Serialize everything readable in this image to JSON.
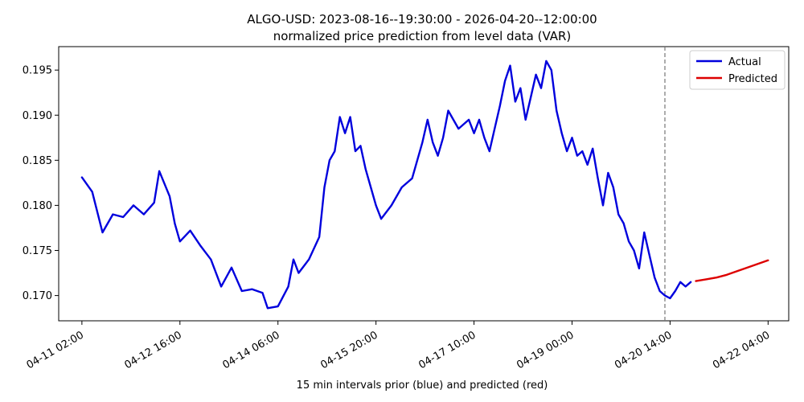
{
  "chart_data": {
    "type": "line",
    "title": "ALGO-USD: 2023-08-16--19:30:00 - 2026-04-20--12:00:00",
    "subtitle": "normalized price prediction from level data (VAR)",
    "xlabel": "15 min intervals prior (blue) and predicted (red)",
    "ylabel": "",
    "x_tick_labels": [
      "04-11 02:00",
      "04-12 16:00",
      "04-14 06:00",
      "04-15 20:00",
      "04-17 10:00",
      "04-19 00:00",
      "04-20 14:00",
      "04-22 04:00"
    ],
    "x_range": [
      "2026-04-10 17:00",
      "2026-04-22 12:00"
    ],
    "y_tick_labels": [
      "0.170",
      "0.175",
      "0.180",
      "0.185",
      "0.190",
      "0.195"
    ],
    "y_ticks": [
      0.17,
      0.175,
      0.18,
      0.185,
      0.19,
      0.195
    ],
    "ylim": [
      0.1672,
      0.1976
    ],
    "grid": false,
    "legend_position": "top-right",
    "split_marker": "2026-04-20 12:00",
    "series": [
      {
        "name": "Actual",
        "color": "#0000dd",
        "points": [
          [
            "2026-04-11 02:00",
            0.1831
          ],
          [
            "2026-04-11 06:00",
            0.1815
          ],
          [
            "2026-04-11 10:00",
            0.177
          ],
          [
            "2026-04-11 14:00",
            0.179
          ],
          [
            "2026-04-11 18:00",
            0.1787
          ],
          [
            "2026-04-11 22:00",
            0.18
          ],
          [
            "2026-04-12 02:00",
            0.179
          ],
          [
            "2026-04-12 06:00",
            0.1803
          ],
          [
            "2026-04-12 08:00",
            0.1838
          ],
          [
            "2026-04-12 12:00",
            0.181
          ],
          [
            "2026-04-12 14:00",
            0.178
          ],
          [
            "2026-04-12 16:00",
            0.176
          ],
          [
            "2026-04-12 20:00",
            0.1772
          ],
          [
            "2026-04-13 00:00",
            0.1755
          ],
          [
            "2026-04-13 04:00",
            0.174
          ],
          [
            "2026-04-13 08:00",
            0.171
          ],
          [
            "2026-04-13 12:00",
            0.1731
          ],
          [
            "2026-04-13 16:00",
            0.1705
          ],
          [
            "2026-04-13 20:00",
            0.1707
          ],
          [
            "2026-04-14 00:00",
            0.1703
          ],
          [
            "2026-04-14 02:00",
            0.1686
          ],
          [
            "2026-04-14 06:00",
            0.1688
          ],
          [
            "2026-04-14 10:00",
            0.171
          ],
          [
            "2026-04-14 12:00",
            0.174
          ],
          [
            "2026-04-14 14:00",
            0.1725
          ],
          [
            "2026-04-14 18:00",
            0.174
          ],
          [
            "2026-04-14 22:00",
            0.1765
          ],
          [
            "2026-04-15 00:00",
            0.182
          ],
          [
            "2026-04-15 02:00",
            0.185
          ],
          [
            "2026-04-15 04:00",
            0.186
          ],
          [
            "2026-04-15 06:00",
            0.1898
          ],
          [
            "2026-04-15 08:00",
            0.188
          ],
          [
            "2026-04-15 10:00",
            0.1898
          ],
          [
            "2026-04-15 12:00",
            0.186
          ],
          [
            "2026-04-15 14:00",
            0.1866
          ],
          [
            "2026-04-15 16:00",
            0.184
          ],
          [
            "2026-04-15 18:00",
            0.182
          ],
          [
            "2026-04-15 20:00",
            0.18
          ],
          [
            "2026-04-15 22:00",
            0.1785
          ],
          [
            "2026-04-16 02:00",
            0.18
          ],
          [
            "2026-04-16 06:00",
            0.182
          ],
          [
            "2026-04-16 10:00",
            0.183
          ],
          [
            "2026-04-16 14:00",
            0.187
          ],
          [
            "2026-04-16 16:00",
            0.1895
          ],
          [
            "2026-04-16 18:00",
            0.187
          ],
          [
            "2026-04-16 20:00",
            0.1855
          ],
          [
            "2026-04-16 22:00",
            0.1875
          ],
          [
            "2026-04-17 00:00",
            0.1905
          ],
          [
            "2026-04-17 04:00",
            0.1885
          ],
          [
            "2026-04-17 08:00",
            0.1895
          ],
          [
            "2026-04-17 10:00",
            0.188
          ],
          [
            "2026-04-17 12:00",
            0.1895
          ],
          [
            "2026-04-17 14:00",
            0.1875
          ],
          [
            "2026-04-17 16:00",
            0.186
          ],
          [
            "2026-04-17 18:00",
            0.1885
          ],
          [
            "2026-04-17 20:00",
            0.191
          ],
          [
            "2026-04-17 22:00",
            0.1938
          ],
          [
            "2026-04-18 00:00",
            0.1955
          ],
          [
            "2026-04-18 02:00",
            0.1915
          ],
          [
            "2026-04-18 04:00",
            0.193
          ],
          [
            "2026-04-18 06:00",
            0.1895
          ],
          [
            "2026-04-18 08:00",
            0.192
          ],
          [
            "2026-04-18 10:00",
            0.1945
          ],
          [
            "2026-04-18 12:00",
            0.193
          ],
          [
            "2026-04-18 14:00",
            0.196
          ],
          [
            "2026-04-18 16:00",
            0.195
          ],
          [
            "2026-04-18 18:00",
            0.1905
          ],
          [
            "2026-04-18 20:00",
            0.188
          ],
          [
            "2026-04-18 22:00",
            0.186
          ],
          [
            "2026-04-19 00:00",
            0.1875
          ],
          [
            "2026-04-19 02:00",
            0.1855
          ],
          [
            "2026-04-19 04:00",
            0.186
          ],
          [
            "2026-04-19 06:00",
            0.1845
          ],
          [
            "2026-04-19 08:00",
            0.1863
          ],
          [
            "2026-04-19 10:00",
            0.183
          ],
          [
            "2026-04-19 12:00",
            0.18
          ],
          [
            "2026-04-19 14:00",
            0.1836
          ],
          [
            "2026-04-19 16:00",
            0.182
          ],
          [
            "2026-04-19 18:00",
            0.179
          ],
          [
            "2026-04-19 20:00",
            0.178
          ],
          [
            "2026-04-19 22:00",
            0.176
          ],
          [
            "2026-04-20 00:00",
            0.175
          ],
          [
            "2026-04-20 02:00",
            0.173
          ],
          [
            "2026-04-20 04:00",
            0.177
          ],
          [
            "2026-04-20 06:00",
            0.1745
          ],
          [
            "2026-04-20 08:00",
            0.172
          ],
          [
            "2026-04-20 10:00",
            0.1705
          ],
          [
            "2026-04-20 12:00",
            0.17
          ],
          [
            "2026-04-20 14:00",
            0.1697
          ],
          [
            "2026-04-20 16:00",
            0.1705
          ],
          [
            "2026-04-20 18:00",
            0.1715
          ],
          [
            "2026-04-20 20:00",
            0.171
          ],
          [
            "2026-04-20 22:00",
            0.1715
          ]
        ]
      },
      {
        "name": "Predicted",
        "color": "#dd0000",
        "points": [
          [
            "2026-04-21 00:00",
            0.1716
          ],
          [
            "2026-04-21 04:00",
            0.1718
          ],
          [
            "2026-04-21 08:00",
            0.172
          ],
          [
            "2026-04-21 12:00",
            0.1723
          ],
          [
            "2026-04-21 16:00",
            0.1727
          ],
          [
            "2026-04-21 20:00",
            0.1731
          ],
          [
            "2026-04-22 00:00",
            0.1735
          ],
          [
            "2026-04-22 04:00",
            0.1739
          ]
        ]
      }
    ]
  }
}
